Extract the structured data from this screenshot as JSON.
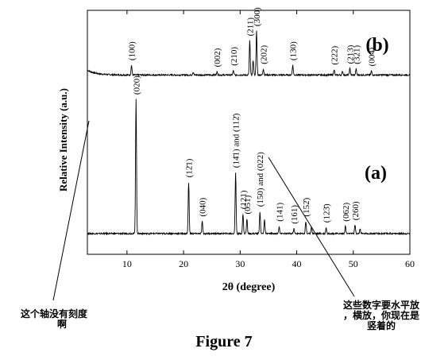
{
  "caption": "Figure 7",
  "annotations": {
    "left_note": [
      "这个轴没有刻度",
      "啊"
    ],
    "right_note": [
      "这些数字要水平放",
      "，横放，你现在是",
      "竖着的"
    ]
  },
  "chart_data": {
    "type": "line",
    "title": "",
    "xlabel": "2θ (degree)",
    "ylabel": "Relative Intensity (a.u.)",
    "xlim": [
      3,
      60
    ],
    "xticks": [
      10,
      20,
      30,
      40,
      50,
      60
    ],
    "yticks": [],
    "grid": false,
    "legend": "none",
    "panels": [
      {
        "name": "(b)",
        "baseline": 0.735,
        "peaks": [
          {
            "x": 10.8,
            "h": 0.04,
            "label": "(100)",
            "labeled": true
          },
          {
            "x": 21.7,
            "h": 0.012,
            "label": "",
            "labeled": false
          },
          {
            "x": 25.9,
            "h": 0.013,
            "label": "(002)",
            "labeled": true
          },
          {
            "x": 28.8,
            "h": 0.018,
            "label": "(210)",
            "labeled": true
          },
          {
            "x": 31.7,
            "h": 0.14,
            "label": "(211)",
            "labeled": true
          },
          {
            "x": 32.3,
            "h": 0.06,
            "label": "",
            "labeled": false
          },
          {
            "x": 32.9,
            "h": 0.18,
            "label": "(300)",
            "labeled": true
          },
          {
            "x": 34.1,
            "h": 0.025,
            "label": "(202)",
            "labeled": true
          },
          {
            "x": 39.3,
            "h": 0.04,
            "label": "(130)",
            "labeled": true
          },
          {
            "x": 46.6,
            "h": 0.022,
            "label": "(222)",
            "labeled": true
          },
          {
            "x": 48.1,
            "h": 0.015,
            "label": "",
            "labeled": false
          },
          {
            "x": 49.4,
            "h": 0.026,
            "label": "(213)",
            "labeled": true
          },
          {
            "x": 50.5,
            "h": 0.025,
            "label": "(321)",
            "labeled": true
          },
          {
            "x": 53.2,
            "h": 0.016,
            "label": "(004)",
            "labeled": true
          }
        ]
      },
      {
        "name": "(a)",
        "baseline": 0.085,
        "peaks": [
          {
            "x": 11.6,
            "h": 0.55,
            "label": "(020)",
            "labeled": true
          },
          {
            "x": 20.9,
            "h": 0.21,
            "label": "(12̄1)",
            "labeled": true
          },
          {
            "x": 23.3,
            "h": 0.05,
            "label": "(040)",
            "labeled": true
          },
          {
            "x": 29.2,
            "h": 0.25,
            "label": "(14̄1) and (112̄)",
            "labeled": true
          },
          {
            "x": 30.5,
            "h": 0.08,
            "label": "(121)",
            "labeled": true
          },
          {
            "x": 31.2,
            "h": 0.06,
            "label": "(051)",
            "labeled": true
          },
          {
            "x": 33.5,
            "h": 0.09,
            "label": "(150) and (022)",
            "labeled": true
          },
          {
            "x": 34.3,
            "h": 0.055,
            "label": "",
            "labeled": false
          },
          {
            "x": 36.9,
            "h": 0.03,
            "label": "(141)",
            "labeled": true
          },
          {
            "x": 39.5,
            "h": 0.02,
            "label": "(161)",
            "labeled": true
          },
          {
            "x": 41.6,
            "h": 0.05,
            "label": "(152̄)",
            "labeled": true
          },
          {
            "x": 42.6,
            "h": 0.03,
            "label": "",
            "labeled": false
          },
          {
            "x": 45.2,
            "h": 0.025,
            "label": "(123̄)",
            "labeled": true
          },
          {
            "x": 48.6,
            "h": 0.03,
            "label": "(062)",
            "labeled": true
          },
          {
            "x": 50.3,
            "h": 0.035,
            "label": "(260)",
            "labeled": true
          },
          {
            "x": 51.2,
            "h": 0.02,
            "label": "",
            "labeled": false
          }
        ]
      }
    ]
  }
}
